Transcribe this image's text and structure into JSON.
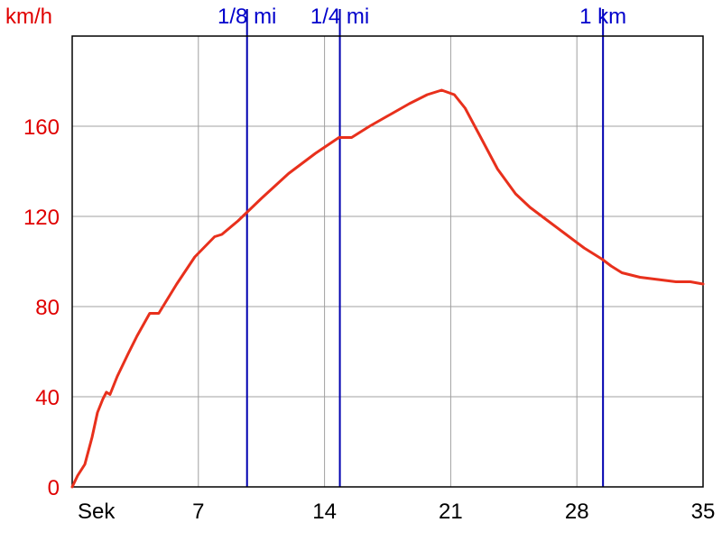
{
  "colors": {
    "speed_line": "#e8301c",
    "marker_line": "#0000b0",
    "marker_text": "#0000cc",
    "y_text": "#e00000",
    "grid": "#a0a0a0",
    "frame": "#000000"
  },
  "chart_data": {
    "type": "line",
    "ylabel": "km/h",
    "xlabel": "Sek",
    "xlim": [
      0,
      35
    ],
    "ylim": [
      0,
      200
    ],
    "x_ticks": [
      {
        "value": 7,
        "label": "7"
      },
      {
        "value": 14,
        "label": "14"
      },
      {
        "value": 21,
        "label": "21"
      },
      {
        "value": 28,
        "label": "28"
      },
      {
        "value": 35,
        "label": "35"
      }
    ],
    "y_ticks": [
      {
        "value": 0,
        "label": "0"
      },
      {
        "value": 40,
        "label": "40"
      },
      {
        "value": 80,
        "label": "80"
      },
      {
        "value": 120,
        "label": "120"
      },
      {
        "value": 160,
        "label": "160"
      }
    ],
    "y_grid": [
      0,
      40,
      80,
      120,
      160,
      200
    ],
    "x_grid": [
      0,
      7,
      14,
      21,
      28,
      35
    ],
    "grid": true,
    "markers": [
      {
        "x": 9.7,
        "label": "1/8 mi"
      },
      {
        "x": 14.85,
        "label": "1/4 mi"
      },
      {
        "x": 29.45,
        "label": "1 km"
      }
    ],
    "series": [
      {
        "x": [
          0,
          0.3,
          0.7,
          1.1,
          1.4,
          1.7,
          1.9,
          2.1,
          2.5,
          3.1,
          3.6,
          4.3,
          4.8,
          5.8,
          6.8,
          7.9,
          8.3,
          9.2,
          10.5,
          12.0,
          13.5,
          14.8,
          15.5,
          16.5,
          17.6,
          18.7,
          19.7,
          20.5,
          21.2,
          21.8,
          22.6,
          23.6,
          24.6,
          25.4,
          26.4,
          27.4,
          28.4,
          29.4,
          29.9,
          30.5,
          31.5,
          32.5,
          33.5,
          34.3,
          35.0
        ],
        "y": [
          0,
          5,
          10,
          22,
          33,
          39,
          42,
          41,
          49,
          59,
          67,
          77,
          77,
          90,
          102,
          111,
          112,
          118,
          128,
          139,
          148,
          155,
          155,
          160,
          165,
          170,
          174,
          176,
          174,
          168,
          156,
          141,
          130,
          124,
          118,
          112,
          106,
          101,
          98,
          95,
          93,
          92,
          91,
          91,
          90
        ]
      }
    ]
  }
}
